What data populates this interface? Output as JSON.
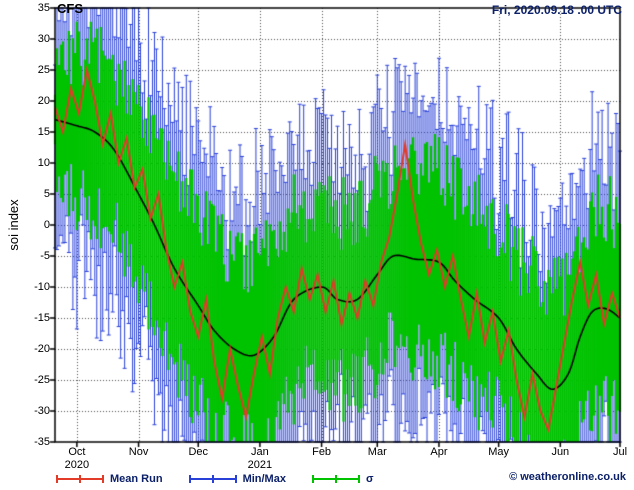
{
  "chart_data": {
    "type": "line",
    "title": "CFS",
    "run_label": "Fri, 2020.09.18 .00 UTC",
    "ylabel": "soi index",
    "watermark": "© weatheronline.co.uk",
    "ylim": [
      -35,
      35
    ],
    "yticks": [
      35,
      30,
      25,
      20,
      15,
      10,
      5,
      0,
      -5,
      -10,
      -15,
      -20,
      -25,
      -30,
      -35
    ],
    "x_domain_days": [
      0,
      284
    ],
    "months": [
      {
        "label": "Oct",
        "day": 11,
        "year": "2020"
      },
      {
        "label": "Nov",
        "day": 42
      },
      {
        "label": "Dec",
        "day": 72
      },
      {
        "label": "Jan",
        "day": 103,
        "year": "2021"
      },
      {
        "label": "Feb",
        "day": 134
      },
      {
        "label": "Mar",
        "day": 162
      },
      {
        "label": "Apr",
        "day": 193
      },
      {
        "label": "May",
        "day": 223
      },
      {
        "label": "Jun",
        "day": 254
      },
      {
        "label": "Jul",
        "day": 284
      }
    ],
    "colors": {
      "mean_run": "#e23b28",
      "minmax": "#2940d8",
      "sigma": "#00c300",
      "mean": "#000000",
      "navy_text": "#0b2068",
      "grid": "#4d4d4d"
    },
    "legend": [
      {
        "label": "Mean Run",
        "series": "mean_run"
      },
      {
        "label": "Min/Max",
        "series": "minmax"
      },
      {
        "label": "σ",
        "series": "sigma"
      }
    ],
    "series": {
      "mean": {
        "name": "ensemble mean (black line)",
        "points": [
          [
            0,
            17
          ],
          [
            11,
            16
          ],
          [
            20,
            15
          ],
          [
            30,
            12
          ],
          [
            42,
            5
          ],
          [
            50,
            0
          ],
          [
            60,
            -7
          ],
          [
            72,
            -13
          ],
          [
            80,
            -17
          ],
          [
            90,
            -20
          ],
          [
            100,
            -21
          ],
          [
            110,
            -18
          ],
          [
            120,
            -12
          ],
          [
            134,
            -10
          ],
          [
            142,
            -12
          ],
          [
            152,
            -12
          ],
          [
            162,
            -8
          ],
          [
            170,
            -5
          ],
          [
            181,
            -5.5
          ],
          [
            193,
            -6
          ],
          [
            201,
            -9
          ],
          [
            211,
            -12
          ],
          [
            223,
            -15
          ],
          [
            232,
            -20
          ],
          [
            242,
            -24
          ],
          [
            250,
            -26.5
          ],
          [
            258,
            -24
          ],
          [
            264,
            -18
          ],
          [
            270,
            -14
          ],
          [
            277,
            -13.5
          ],
          [
            284,
            -15
          ]
        ]
      },
      "mean_run": {
        "name": "Mean Run (red line)",
        "points": [
          [
            0,
            19
          ],
          [
            4,
            15
          ],
          [
            8,
            22
          ],
          [
            12,
            18
          ],
          [
            16,
            25
          ],
          [
            20,
            20
          ],
          [
            24,
            13
          ],
          [
            28,
            18
          ],
          [
            32,
            10
          ],
          [
            36,
            14
          ],
          [
            40,
            6
          ],
          [
            44,
            9
          ],
          [
            48,
            1
          ],
          [
            52,
            5
          ],
          [
            56,
            -4
          ],
          [
            60,
            -10
          ],
          [
            64,
            -6
          ],
          [
            68,
            -14
          ],
          [
            72,
            -18
          ],
          [
            76,
            -12
          ],
          [
            80,
            -22
          ],
          [
            84,
            -28
          ],
          [
            88,
            -20
          ],
          [
            92,
            -26
          ],
          [
            96,
            -31
          ],
          [
            100,
            -24
          ],
          [
            104,
            -18
          ],
          [
            108,
            -24
          ],
          [
            112,
            -15
          ],
          [
            116,
            -10
          ],
          [
            120,
            -14
          ],
          [
            124,
            -7
          ],
          [
            128,
            -12
          ],
          [
            132,
            -8
          ],
          [
            136,
            -14
          ],
          [
            140,
            -9
          ],
          [
            144,
            -16
          ],
          [
            148,
            -11
          ],
          [
            152,
            -15
          ],
          [
            156,
            -9
          ],
          [
            160,
            -13
          ],
          [
            164,
            -6
          ],
          [
            168,
            -2
          ],
          [
            172,
            5
          ],
          [
            176,
            13
          ],
          [
            180,
            4
          ],
          [
            184,
            -3
          ],
          [
            188,
            -8
          ],
          [
            192,
            -4
          ],
          [
            196,
            -10
          ],
          [
            200,
            -5
          ],
          [
            204,
            -12
          ],
          [
            208,
            -18
          ],
          [
            212,
            -11
          ],
          [
            216,
            -19
          ],
          [
            220,
            -14
          ],
          [
            224,
            -22
          ],
          [
            228,
            -17
          ],
          [
            232,
            -25
          ],
          [
            236,
            -31
          ],
          [
            240,
            -24
          ],
          [
            244,
            -30
          ],
          [
            248,
            -33
          ],
          [
            252,
            -26
          ],
          [
            256,
            -19
          ],
          [
            260,
            -12
          ],
          [
            264,
            -6
          ],
          [
            268,
            -13
          ],
          [
            272,
            -8
          ],
          [
            276,
            -16
          ],
          [
            280,
            -11
          ],
          [
            284,
            -15
          ]
        ]
      },
      "sigma_band": {
        "name": "σ (green bars, mean ± σ)",
        "base_sigma": [
          [
            0,
            9
          ],
          [
            20,
            13
          ],
          [
            40,
            14
          ],
          [
            72,
            15
          ],
          [
            103,
            15
          ],
          [
            134,
            14
          ],
          [
            162,
            14
          ],
          [
            193,
            15
          ],
          [
            223,
            15
          ],
          [
            254,
            16
          ],
          [
            284,
            16
          ]
        ],
        "jitter": 6,
        "min_sigma": 4
      },
      "minmax_band": {
        "name": "Min/Max (blue whiskers beyond σ band)",
        "extra_base": 4,
        "extra_jitter": 13
      }
    },
    "noise_seed": 7
  }
}
